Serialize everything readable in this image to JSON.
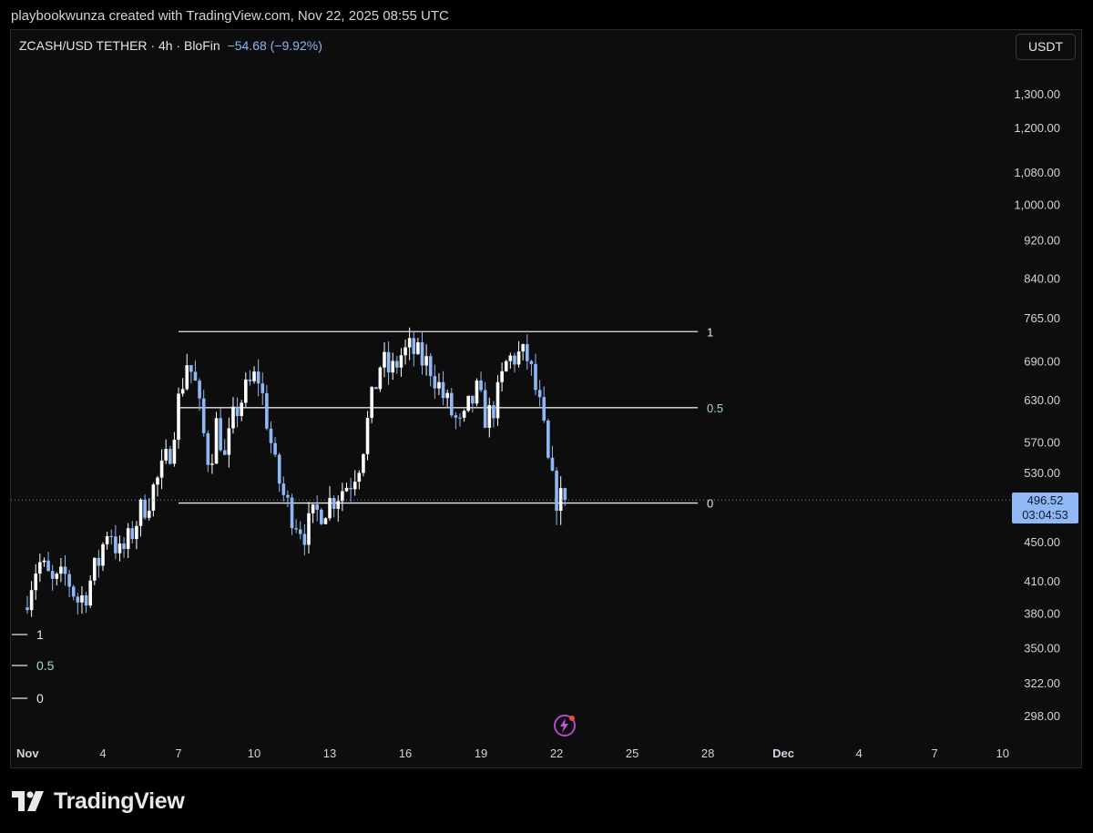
{
  "header": {
    "caption": "playbookwunza created with TradingView.com, Nov 22, 2025 08:55 UTC"
  },
  "legend": {
    "symbol": "ZCASH/USD TETHER · 4h · BloFin",
    "change": "−54.68 (−9.92%)"
  },
  "currency_button": "USDT",
  "price_badge": {
    "price": "496.52",
    "countdown": "03:04:53"
  },
  "footer": {
    "brand": "TradingView"
  },
  "colors": {
    "background": "#0d0d0d",
    "candle_up": "#ffffff",
    "candle_down": "#8fb8f5",
    "fib_line": "#e6e6e6",
    "fib_mid_label": "#a8d8c8",
    "price_line": "#5b8def"
  },
  "icons": [
    "tradingview-logo-icon",
    "alert-bolt-icon"
  ],
  "chart_data": {
    "type": "candlestick",
    "scale": "log",
    "currency": "USDT",
    "ylim": [
      290,
      1400
    ],
    "y_ticks": [
      "1,300.00",
      "1,200.00",
      "1,080.00",
      "1,000.00",
      "920.00",
      "840.00",
      "765.00",
      "690.00",
      "630.00",
      "570.00",
      "530.00",
      "450.00",
      "410.00",
      "380.00",
      "350.00",
      "322.00",
      "298.00"
    ],
    "y_tick_values": [
      1300,
      1200,
      1080,
      1000,
      920,
      840,
      765,
      690,
      630,
      570,
      530,
      450,
      410,
      380,
      350,
      322,
      298
    ],
    "x_ticks": [
      "Nov",
      "4",
      "7",
      "10",
      "13",
      "16",
      "19",
      "22",
      "25",
      "28",
      "Dec",
      "4",
      "7",
      "10"
    ],
    "x_tick_days": [
      1,
      4,
      7,
      10,
      13,
      16,
      19,
      22,
      25,
      28,
      31,
      34,
      37,
      40
    ],
    "last_price": 496.52,
    "fib_levels": [
      {
        "label": "1",
        "price": 740
      },
      {
        "label": "0.5",
        "price": 618
      },
      {
        "label": "0",
        "price": 493
      }
    ],
    "fib_range_days": [
      7,
      27.6
    ],
    "fib_legend": [
      "1",
      "0.5",
      "0"
    ],
    "path": [
      [
        1.0,
        385
      ],
      [
        1.6,
        430
      ],
      [
        2.2,
        405
      ],
      [
        2.7,
        415
      ],
      [
        3.2,
        390
      ],
      [
        3.5,
        400
      ],
      [
        4.0,
        430
      ],
      [
        4.4,
        470
      ],
      [
        4.8,
        435
      ],
      [
        5.1,
        445
      ],
      [
        5.6,
        480
      ],
      [
        6.0,
        500
      ],
      [
        6.5,
        530
      ],
      [
        6.8,
        555
      ],
      [
        7.1,
        615
      ],
      [
        7.5,
        690
      ],
      [
        7.8,
        660
      ],
      [
        8.1,
        590
      ],
      [
        8.4,
        540
      ],
      [
        8.7,
        600
      ],
      [
        9.0,
        545
      ],
      [
        9.4,
        610
      ],
      [
        9.8,
        640
      ],
      [
        10.3,
        670
      ],
      [
        10.6,
        615
      ],
      [
        11.0,
        535
      ],
      [
        11.4,
        495
      ],
      [
        11.8,
        475
      ],
      [
        12.2,
        460
      ],
      [
        12.6,
        480
      ],
      [
        13.0,
        490
      ],
      [
        13.5,
        505
      ],
      [
        14.0,
        520
      ],
      [
        14.4,
        550
      ],
      [
        14.8,
        620
      ],
      [
        15.2,
        690
      ],
      [
        15.6,
        670
      ],
      [
        16.0,
        700
      ],
      [
        16.4,
        710
      ],
      [
        16.7,
        695
      ],
      [
        17.2,
        680
      ],
      [
        17.6,
        640
      ],
      [
        18.0,
        610
      ],
      [
        18.4,
        585
      ],
      [
        18.7,
        620
      ],
      [
        19.0,
        640
      ],
      [
        19.4,
        600
      ],
      [
        19.8,
        630
      ],
      [
        20.2,
        690
      ],
      [
        20.6,
        700
      ],
      [
        21.0,
        695
      ],
      [
        21.3,
        650
      ],
      [
        21.6,
        600
      ],
      [
        21.8,
        545
      ],
      [
        22.0,
        515
      ],
      [
        22.2,
        497
      ]
    ]
  }
}
